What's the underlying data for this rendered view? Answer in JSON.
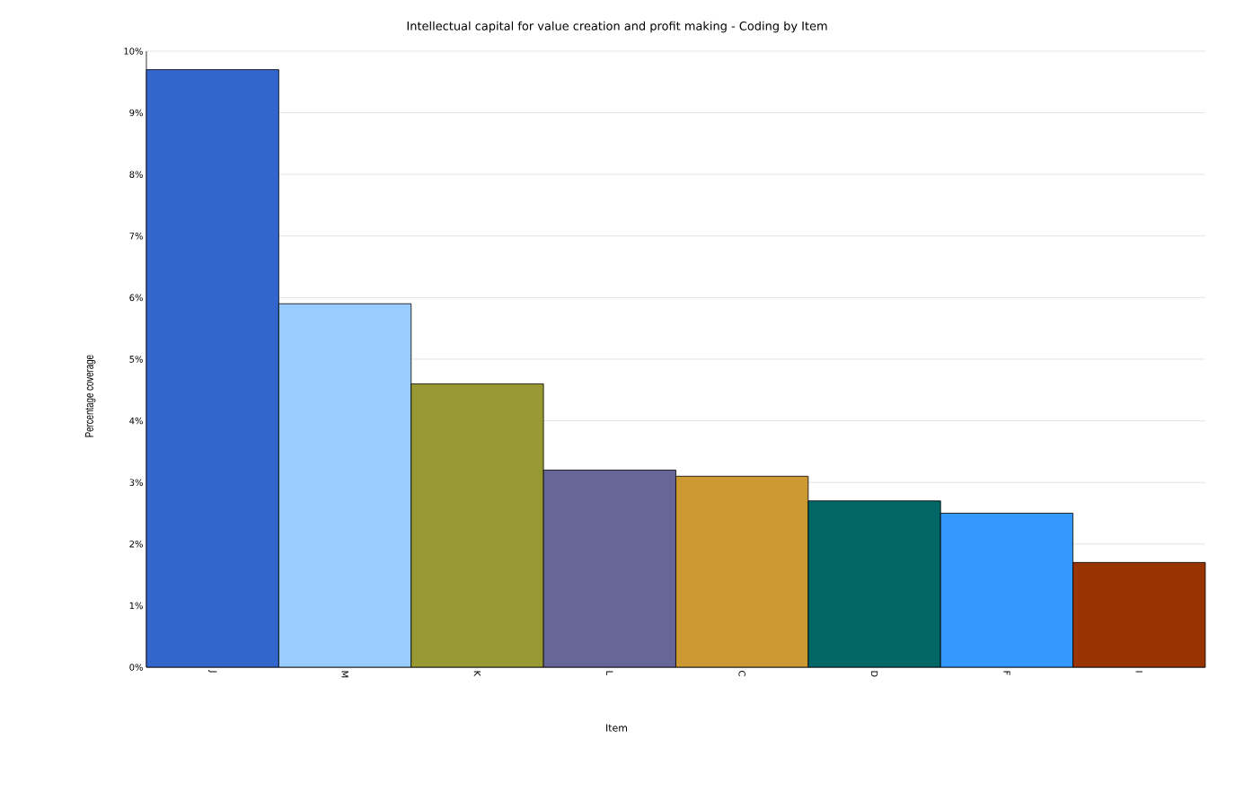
{
  "chart_data": {
    "type": "bar",
    "title": "Intellectual capital for value creation and profit making - Coding by Item",
    "xlabel": "Item",
    "ylabel": "Percentage coverage",
    "categories": [
      "J",
      "M",
      "K",
      "L",
      "C",
      "D",
      "F",
      "I"
    ],
    "values": [
      9.7,
      5.9,
      4.6,
      3.2,
      3.1,
      2.7,
      2.5,
      1.7
    ],
    "colors": [
      "#3366cc",
      "#99ccff",
      "#999933",
      "#666699",
      "#cc9933",
      "#006666",
      "#3399ff",
      "#993300"
    ],
    "ylim": [
      0,
      10
    ],
    "yticks": [
      {
        "value": 0,
        "label": "0%"
      },
      {
        "value": 1,
        "label": "1%"
      },
      {
        "value": 2,
        "label": "2%"
      },
      {
        "value": 3,
        "label": "3%"
      },
      {
        "value": 4,
        "label": "4%"
      },
      {
        "value": 5,
        "label": "5%"
      },
      {
        "value": 6,
        "label": "6%"
      },
      {
        "value": 7,
        "label": "7%"
      },
      {
        "value": 8,
        "label": "8%"
      },
      {
        "value": 9,
        "label": "9%"
      },
      {
        "value": 10,
        "label": "10%"
      }
    ],
    "grid": "y"
  }
}
